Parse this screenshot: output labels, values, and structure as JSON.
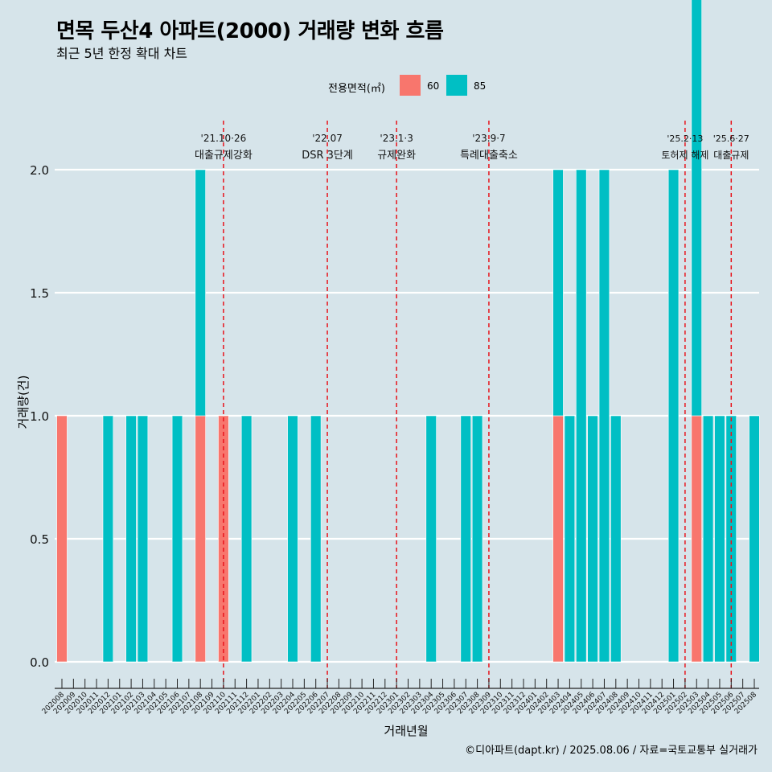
{
  "header": {
    "title": "면목 두산4 아파트(2000) 거래량 변화 흐름",
    "subtitle": "최근 5년 한정 확대 차트"
  },
  "legend": {
    "title": "전용면적(㎡)",
    "items": [
      {
        "label": "60",
        "color": "#F8766D"
      },
      {
        "label": "85",
        "color": "#00BFC4"
      }
    ]
  },
  "caption": "©디아파트(dapt.kr) / 2025.08.06 / 자료=국토교통부 실거래가",
  "chart_data": {
    "type": "bar",
    "xlabel": "거래년월",
    "ylabel": "거래량(건)",
    "ylim": [
      0,
      2.2
    ],
    "yticks": [
      0.0,
      0.5,
      1.0,
      1.5,
      2.0
    ],
    "ytick_labels": [
      "0.0",
      "0.5",
      "1.0",
      "1.5",
      "2.0"
    ],
    "grid": true,
    "legend_position": "top",
    "categories": [
      "202008",
      "202009",
      "202010",
      "202011",
      "202012",
      "202101",
      "202102",
      "202103",
      "202104",
      "202105",
      "202106",
      "202107",
      "202108",
      "202109",
      "202110",
      "202111",
      "202112",
      "202201",
      "202202",
      "202203",
      "202204",
      "202205",
      "202206",
      "202207",
      "202208",
      "202209",
      "202210",
      "202211",
      "202212",
      "202301",
      "202302",
      "202303",
      "202304",
      "202305",
      "202306",
      "202307",
      "202308",
      "202309",
      "202310",
      "202311",
      "202312",
      "202401",
      "202402",
      "202403",
      "202404",
      "202405",
      "202406",
      "202407",
      "202408",
      "202409",
      "202410",
      "202411",
      "202412",
      "202501",
      "202502",
      "202503",
      "202504",
      "202505",
      "202506",
      "202507",
      "202508"
    ],
    "series": [
      {
        "name": "60",
        "color": "#F8766D",
        "values": [
          1,
          0,
          0,
          0,
          0,
          0,
          0,
          0,
          0,
          0,
          0,
          0,
          1,
          0,
          1,
          0,
          0,
          0,
          0,
          0,
          0,
          0,
          0,
          0,
          0,
          0,
          0,
          0,
          0,
          0,
          0,
          0,
          0,
          0,
          0,
          0,
          0,
          0,
          0,
          0,
          0,
          0,
          0,
          1,
          0,
          0,
          0,
          0,
          0,
          0,
          0,
          0,
          0,
          0,
          0,
          1,
          0,
          0,
          0,
          0,
          0
        ]
      },
      {
        "name": "85",
        "color": "#00BFC4",
        "values": [
          0,
          0,
          0,
          0,
          1,
          0,
          1,
          1,
          0,
          0,
          1,
          0,
          1,
          0,
          0,
          0,
          1,
          0,
          0,
          0,
          1,
          0,
          1,
          0,
          0,
          0,
          0,
          0,
          0,
          0,
          0,
          0,
          1,
          0,
          0,
          1,
          1,
          0,
          0,
          0,
          0,
          0,
          0,
          1,
          1,
          2,
          1,
          2,
          1,
          0,
          0,
          0,
          0,
          2,
          0,
          2,
          1,
          1,
          1,
          0,
          1
        ]
      }
    ],
    "annotations": [
      {
        "x": "202110",
        "date": "'21.10·26",
        "label": "대출규제강화"
      },
      {
        "x": "202207",
        "date": "'22.07",
        "label": "DSR 3단계"
      },
      {
        "x": "202301",
        "date": "'23.1·3",
        "label": "규제완화"
      },
      {
        "x": "202309",
        "date": "'23.9·7",
        "label": "특례대출축소"
      },
      {
        "x": "202502",
        "date": "'25.2·13",
        "label": "토허제 해제"
      },
      {
        "x": "202506",
        "date": "'25.6·27",
        "label": "대출규제"
      }
    ]
  }
}
